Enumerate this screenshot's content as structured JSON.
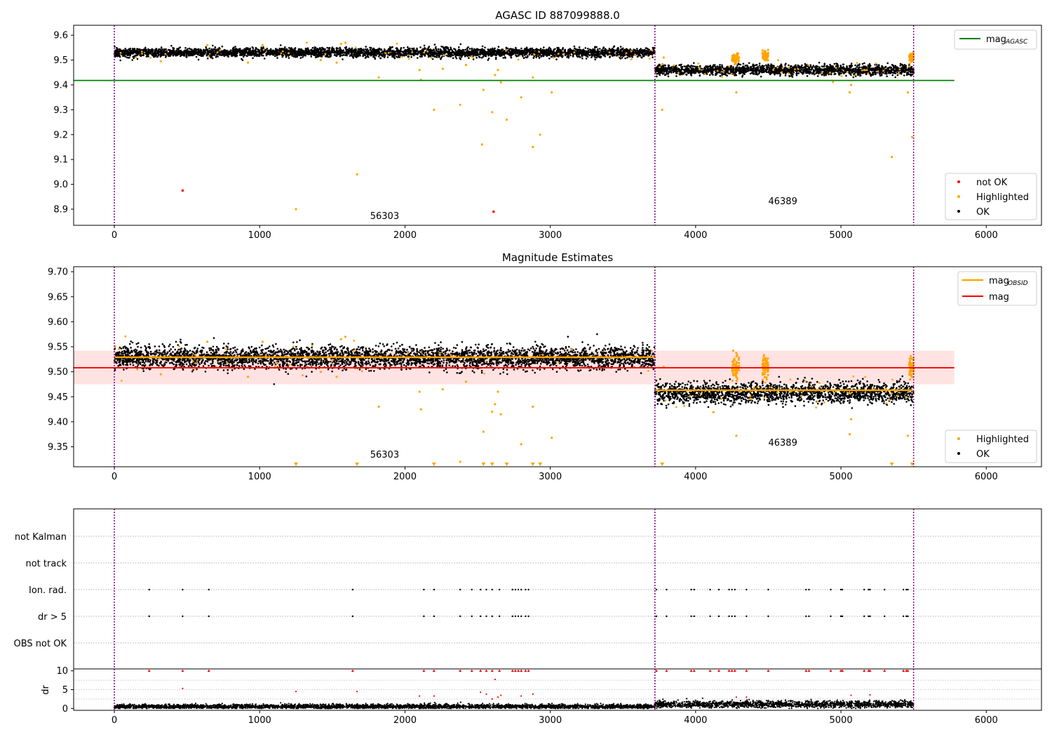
{
  "chart_data": [
    {
      "type": "scatter",
      "title": "AGASC ID 887099888.0",
      "xlim": [
        -280,
        6380
      ],
      "ylim": [
        8.835,
        9.64
      ],
      "xticks": [
        0,
        1000,
        2000,
        3000,
        4000,
        5000,
        6000
      ],
      "xtick_labels": [
        "0",
        "1000",
        "2000",
        "3000",
        "4000",
        "5000",
        "6000"
      ],
      "yticks": [
        8.9,
        9.0,
        9.1,
        9.2,
        9.3,
        9.4,
        9.5,
        9.6
      ],
      "ytick_labels": [
        "8.9",
        "9.0",
        "9.1",
        "9.2",
        "9.3",
        "9.4",
        "9.5",
        "9.6"
      ],
      "obs_boundaries": [
        0,
        3720,
        5500
      ],
      "obs_labels": [
        {
          "text": "56303",
          "x": 1860,
          "y": 8.86
        },
        {
          "text": "46389",
          "x": 4600,
          "y": 8.92
        }
      ],
      "hlines": [
        {
          "name": "mag_AGASC",
          "y": 9.418,
          "x0": -280,
          "x1": 5780,
          "color": "#008000"
        }
      ],
      "segments": [
        {
          "x0": 0,
          "x1": 3720,
          "mean": 9.53,
          "noise": 0.009
        },
        {
          "x0": 3720,
          "x1": 5500,
          "mean": 9.46,
          "noise": 0.01
        }
      ],
      "highlighted_points": [
        [
          320,
          9.495
        ],
        [
          640,
          9.56
        ],
        [
          920,
          9.49
        ],
        [
          1020,
          9.56
        ],
        [
          1250,
          8.9
        ],
        [
          1420,
          9.5
        ],
        [
          1530,
          9.49
        ],
        [
          1560,
          9.565
        ],
        [
          1590,
          9.57
        ],
        [
          1670,
          9.04
        ],
        [
          1820,
          9.43
        ],
        [
          2100,
          9.46
        ],
        [
          2110,
          9.42
        ],
        [
          2200,
          9.3
        ],
        [
          2260,
          9.465
        ],
        [
          2380,
          9.32
        ],
        [
          2420,
          9.48
        ],
        [
          2530,
          9.16
        ],
        [
          2540,
          9.38
        ],
        [
          2600,
          9.29
        ],
        [
          2620,
          9.44
        ],
        [
          2640,
          9.46
        ],
        [
          2660,
          9.41
        ],
        [
          2700,
          9.26
        ],
        [
          2800,
          9.35
        ],
        [
          2880,
          9.15
        ],
        [
          2880,
          9.43
        ],
        [
          2930,
          9.2
        ],
        [
          3010,
          9.37
        ],
        [
          3770,
          9.3
        ],
        [
          3780,
          9.51
        ],
        [
          4280,
          9.37
        ],
        [
          5060,
          9.37
        ],
        [
          5070,
          9.4
        ],
        [
          5350,
          9.11
        ],
        [
          5460,
          9.37
        ],
        [
          5490,
          9.19
        ]
      ],
      "highlighted_clusters": [
        [
          4250,
          4300,
          9.51,
          0.01
        ],
        [
          4460,
          4500,
          9.515,
          0.01
        ],
        [
          5470,
          5500,
          9.515,
          0.01
        ]
      ],
      "not_ok_points": [
        [
          470,
          8.975
        ],
        [
          2610,
          8.89
        ]
      ],
      "legend_lines": [
        {
          "label": "mag",
          "sub": "AGASC",
          "color": "#008000"
        }
      ],
      "legend_points": [
        {
          "label": "not OK",
          "color": "#ff0000"
        },
        {
          "label": "Highlighted",
          "color": "#ffa500"
        },
        {
          "label": "OK",
          "color": "#000000"
        }
      ]
    },
    {
      "type": "scatter",
      "title": "Magnitude Estimates",
      "xlim": [
        -280,
        6380
      ],
      "ylim": [
        9.31,
        9.71
      ],
      "xticks": [
        0,
        1000,
        2000,
        3000,
        4000,
        5000,
        6000
      ],
      "xtick_labels": [
        "0",
        "1000",
        "2000",
        "3000",
        "4000",
        "5000",
        "6000"
      ],
      "yticks": [
        9.35,
        9.4,
        9.45,
        9.5,
        9.55,
        9.6,
        9.65,
        9.7
      ],
      "ytick_labels": [
        "9.35",
        "9.40",
        "9.45",
        "9.50",
        "9.55",
        "9.60",
        "9.65",
        "9.70"
      ],
      "obs_boundaries": [
        0,
        3720,
        5500
      ],
      "obs_labels": [
        {
          "text": "56303",
          "x": 1860,
          "y": 9.328
        },
        {
          "text": "46389",
          "x": 4600,
          "y": 9.352
        }
      ],
      "mag": 9.508,
      "mag_band": [
        9.475,
        9.542
      ],
      "mag_range": [
        -280,
        5780
      ],
      "obsid_means": [
        {
          "x0": 0,
          "x1": 3720,
          "y": 9.529
        },
        {
          "x0": 3720,
          "x1": 5500,
          "y": 9.463
        }
      ],
      "segments": [
        {
          "x0": 0,
          "x1": 3720,
          "mean": 9.528,
          "noise": 0.011
        },
        {
          "x0": 3720,
          "x1": 5500,
          "mean": 9.458,
          "noise": 0.01
        }
      ],
      "highlighted_points": [
        [
          320,
          9.495
        ],
        [
          640,
          9.56
        ],
        [
          920,
          9.49
        ],
        [
          1020,
          9.56
        ],
        [
          1420,
          9.5
        ],
        [
          1530,
          9.49
        ],
        [
          1560,
          9.565
        ],
        [
          1590,
          9.57
        ],
        [
          1820,
          9.43
        ],
        [
          2100,
          9.46
        ],
        [
          2110,
          9.425
        ],
        [
          2260,
          9.465
        ],
        [
          2380,
          9.32
        ],
        [
          2420,
          9.48
        ],
        [
          2540,
          9.38
        ],
        [
          2600,
          9.42
        ],
        [
          2620,
          9.435
        ],
        [
          2640,
          9.46
        ],
        [
          2660,
          9.415
        ],
        [
          2800,
          9.355
        ],
        [
          2880,
          9.43
        ],
        [
          3010,
          9.368
        ],
        [
          3780,
          9.51
        ],
        [
          4280,
          9.372
        ],
        [
          5060,
          9.375
        ],
        [
          5070,
          9.405
        ],
        [
          5460,
          9.372
        ]
      ],
      "highlighted_clusters": [
        [
          4250,
          4300,
          9.51,
          0.012
        ],
        [
          4460,
          4500,
          9.51,
          0.012
        ],
        [
          5470,
          5500,
          9.51,
          0.012
        ]
      ],
      "clipped_points": [
        1250,
        1670,
        2200,
        2540,
        2600,
        2700,
        2880,
        2930,
        3770,
        5350,
        5490
      ],
      "legend_lines": [
        {
          "label": "mag",
          "sub": "OBSID",
          "color": "#ffa500"
        },
        {
          "label": "mag",
          "sub": "",
          "color": "#ff0000"
        }
      ],
      "legend_points": [
        {
          "label": "Highlighted",
          "color": "#ffa500"
        },
        {
          "label": "OK",
          "color": "#000000"
        }
      ]
    },
    {
      "type": "scatter",
      "title": "",
      "xlim": [
        -280,
        6380
      ],
      "categories": [
        "not Kalman",
        "not track",
        "Ion. rad.",
        "dr > 5",
        "OBS not OK"
      ],
      "flag_points": [
        240,
        470,
        650,
        1640,
        2130,
        2200,
        2380,
        2460,
        2520,
        2560,
        2600,
        2650,
        2740,
        2760,
        2780,
        2800,
        2830,
        2850,
        3730,
        3800,
        3970,
        3990,
        4100,
        4160,
        4230,
        4250,
        4270,
        4350,
        4500,
        4760,
        4780,
        4930,
        5000,
        5010,
        5160,
        5190,
        5200,
        5300,
        5430,
        5450,
        5460
      ],
      "obs_boundaries": [
        0,
        3720,
        5500
      ],
      "dr_ylabel": "dr",
      "dr_ylim": [
        -0.5,
        10.5
      ],
      "dr_yticks": [
        0,
        5,
        10
      ],
      "dr_ytick_labels": [
        "0",
        "5",
        "10"
      ],
      "dr_xticks": [
        0,
        1000,
        2000,
        3000,
        4000,
        5000,
        6000
      ],
      "dr_xtick_labels": [
        "0",
        "1000",
        "2000",
        "3000",
        "4000",
        "5000",
        "6000"
      ],
      "dr_capped_points": [
        240,
        470,
        650,
        1640,
        2130,
        2200,
        2380,
        2460,
        2520,
        2560,
        2600,
        2650,
        2740,
        2760,
        2780,
        2800,
        2830,
        2850,
        3730,
        3800,
        3970,
        3990,
        4100,
        4160,
        4230,
        4250,
        4270,
        4350,
        4500,
        4760,
        4780,
        4930,
        5000,
        5010,
        5160,
        5190,
        5200,
        5300,
        5430,
        5450,
        5460
      ],
      "dr_red_points": [
        [
          470,
          5.3
        ],
        [
          1250,
          4.5
        ],
        [
          1670,
          4.5
        ],
        [
          2100,
          3.3
        ],
        [
          2200,
          3.3
        ],
        [
          2520,
          4.3
        ],
        [
          2560,
          3.8
        ],
        [
          2600,
          2.5
        ],
        [
          2620,
          7.7
        ],
        [
          2640,
          3.0
        ],
        [
          2660,
          3.5
        ],
        [
          2800,
          3.3
        ],
        [
          2880,
          3.8
        ],
        [
          4280,
          3.0
        ],
        [
          4350,
          3.0
        ],
        [
          5070,
          3.5
        ],
        [
          5200,
          3.6
        ]
      ],
      "dr_segments": [
        {
          "x0": 0,
          "x1": 3720,
          "mean": 0.5,
          "noise": 0.3
        },
        {
          "x0": 3720,
          "x1": 5500,
          "mean": 1.1,
          "noise": 0.45
        }
      ]
    }
  ]
}
